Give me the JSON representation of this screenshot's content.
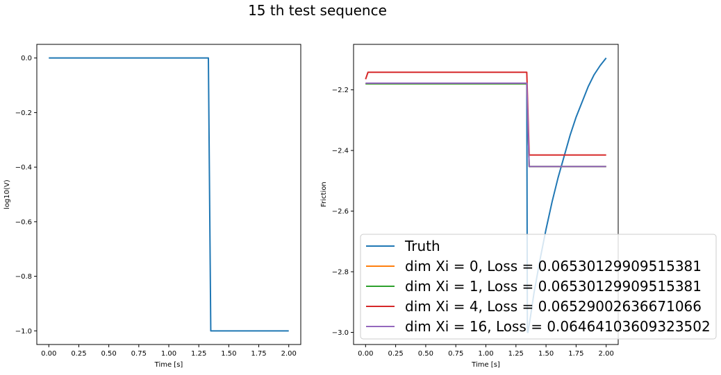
{
  "figure": {
    "suptitle": "15 th test sequence"
  },
  "colors": {
    "truth": "#1f77b4",
    "dim0": "#ff7f0e",
    "dim1": "#2ca02c",
    "dim4": "#d62728",
    "dim16": "#9467bd"
  },
  "chart_data": [
    {
      "type": "line",
      "title": "",
      "xlabel": "Time [s]",
      "ylabel": "log10(V)",
      "xlim": [
        -0.1,
        2.1
      ],
      "ylim": [
        -1.05,
        0.05
      ],
      "xticks": [
        0.0,
        0.25,
        0.5,
        0.75,
        1.0,
        1.25,
        1.5,
        1.75,
        2.0
      ],
      "xtick_labels": [
        "0.00",
        "0.25",
        "0.50",
        "0.75",
        "1.00",
        "1.25",
        "1.50",
        "1.75",
        "2.00"
      ],
      "yticks": [
        0.0,
        -0.2,
        -0.4,
        -0.6,
        -0.8,
        -1.0
      ],
      "ytick_labels": [
        "0.0",
        "−0.2",
        "−0.4",
        "−0.6",
        "−0.8",
        "−1.0"
      ],
      "series": [
        {
          "color": "#1f77b4",
          "x": [
            0.0,
            1.33,
            1.35,
            2.0
          ],
          "y": [
            0.0,
            0.0,
            -1.0,
            -1.0
          ]
        }
      ]
    },
    {
      "type": "line",
      "title": "",
      "xlabel": "Time [s]",
      "ylabel": "Friction",
      "xlim": [
        -0.1,
        2.1
      ],
      "ylim": [
        -3.04,
        -2.05
      ],
      "xticks": [
        0.0,
        0.25,
        0.5,
        0.75,
        1.0,
        1.25,
        1.5,
        1.75,
        2.0
      ],
      "xtick_labels": [
        "0.00",
        "0.25",
        "0.50",
        "0.75",
        "1.00",
        "1.25",
        "1.50",
        "1.75",
        "2.00"
      ],
      "yticks": [
        -2.2,
        -2.4,
        -2.6,
        -2.8,
        -3.0
      ],
      "ytick_labels": [
        "−2.2",
        "−2.4",
        "−2.6",
        "−2.8",
        "−3.0"
      ],
      "legend": "lower-right, extends beyond axes",
      "series": [
        {
          "name": "Truth",
          "color": "#1f77b4",
          "x": [
            0.0,
            1.34,
            1.345,
            1.35,
            1.37,
            1.4,
            1.45,
            1.5,
            1.55,
            1.6,
            1.65,
            1.7,
            1.75,
            1.8,
            1.85,
            1.9,
            1.95,
            2.0
          ],
          "y": [
            -2.18,
            -2.18,
            -3.0,
            -3.0,
            -2.95,
            -2.87,
            -2.76,
            -2.66,
            -2.57,
            -2.49,
            -2.42,
            -2.35,
            -2.29,
            -2.24,
            -2.19,
            -2.15,
            -2.12,
            -2.095
          ]
        },
        {
          "name": "dim Xi = 0, Loss = 0.06530129909515381",
          "color": "#ff7f0e",
          "x": [
            0.0,
            1.34,
            1.36,
            2.0
          ],
          "y": [
            -2.18,
            -2.18,
            -2.453,
            -2.453
          ]
        },
        {
          "name": "dim Xi = 1, Loss = 0.06530129909515381",
          "color": "#2ca02c",
          "x": [
            0.0,
            1.34,
            1.36,
            2.0
          ],
          "y": [
            -2.18,
            -2.18,
            -2.453,
            -2.453
          ]
        },
        {
          "name": "dim Xi = 4, Loss = 0.06529002636671066",
          "color": "#d62728",
          "x": [
            0.0,
            0.02,
            1.34,
            1.36,
            2.0
          ],
          "y": [
            -2.165,
            -2.142,
            -2.142,
            -2.415,
            -2.415
          ]
        },
        {
          "name": "dim Xi = 16, Loss = 0.06464103609323502",
          "color": "#9467bd",
          "x": [
            0.0,
            1.34,
            1.36,
            2.0
          ],
          "y": [
            -2.178,
            -2.178,
            -2.453,
            -2.453
          ]
        }
      ]
    }
  ]
}
